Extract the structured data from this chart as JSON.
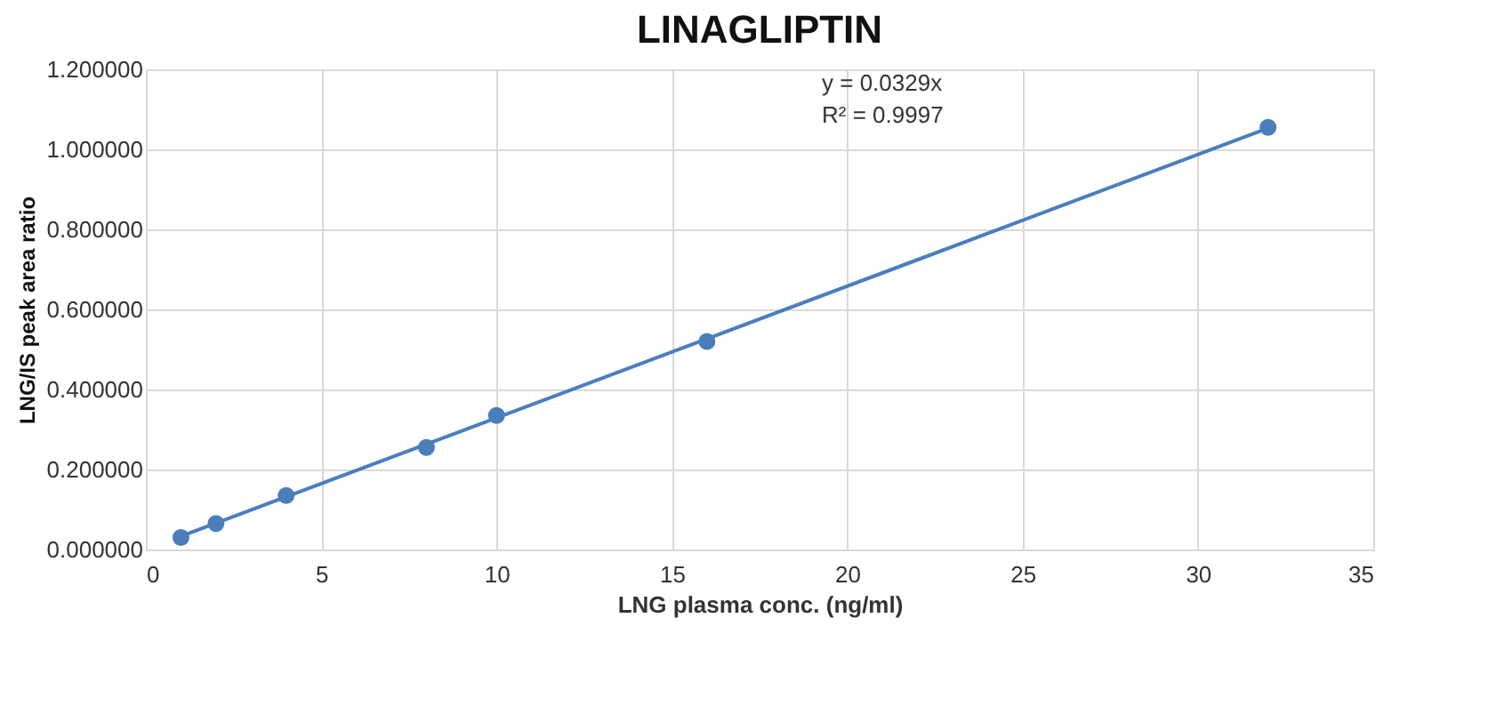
{
  "chart_data": {
    "type": "scatter",
    "title": "LINAGLIPTIN",
    "xlabel": "LNG plasma conc. (ng/ml)",
    "ylabel": "LNG/IS peak area ratio",
    "xlim": [
      0,
      35
    ],
    "xticks": [
      0,
      5,
      10,
      15,
      20,
      25,
      30,
      35
    ],
    "ylim": [
      0,
      1.2
    ],
    "yticks": [
      {
        "value": 0,
        "label": "0.000000"
      },
      {
        "value": 0.2,
        "label": "0.200000"
      },
      {
        "value": 0.4,
        "label": "0.400000"
      },
      {
        "value": 0.6,
        "label": "0.600000"
      },
      {
        "value": 0.8,
        "label": "0.800000"
      },
      {
        "value": 1.0,
        "label": "1.000000"
      },
      {
        "value": 1.2,
        "label": "1.200000"
      }
    ],
    "grid": true,
    "annotations": [
      "y = 0.0329x",
      "R² = 0.9997"
    ],
    "series": [
      {
        "color": "#4a7ebb",
        "marker": "circle",
        "x": [
          1,
          2,
          4,
          8,
          10,
          16,
          32
        ],
        "values": [
          0.03,
          0.065,
          0.135,
          0.255,
          0.335,
          0.52,
          1.055
        ]
      },
      {
        "type": "line",
        "color": "#4a7ebb",
        "marker": "none",
        "x": [
          1,
          32
        ],
        "values": [
          0.033,
          1.053
        ],
        "line_style": "solid"
      }
    ]
  }
}
